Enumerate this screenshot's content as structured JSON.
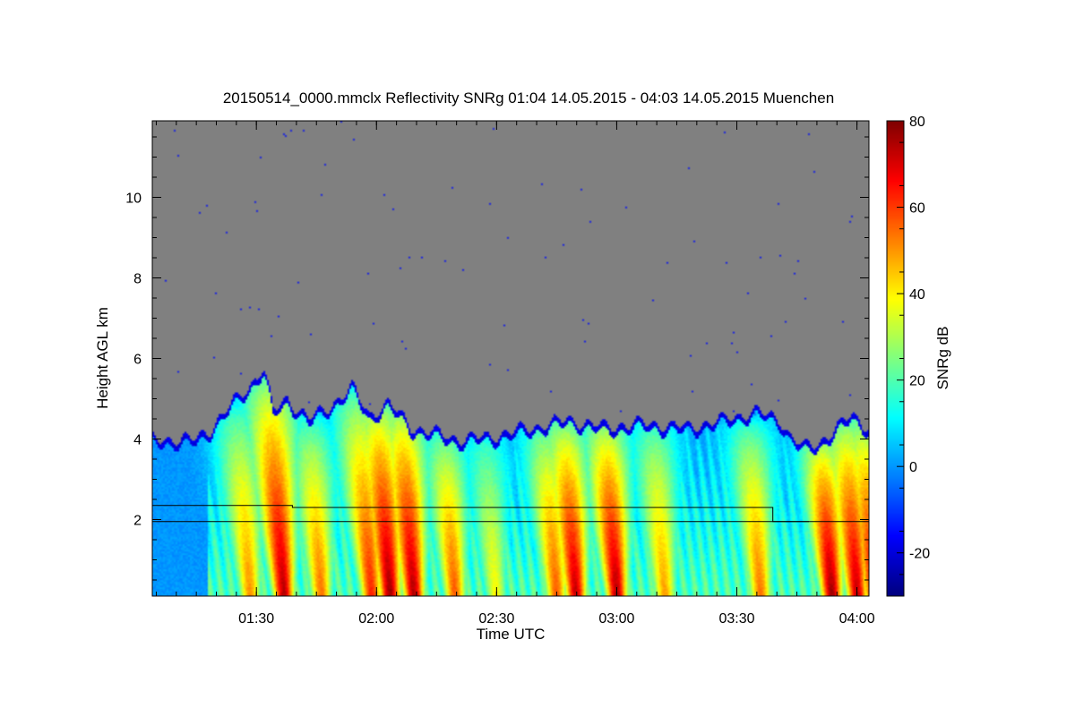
{
  "chart_data": {
    "type": "heatmap",
    "title": "20150514_0000.mmclx Reflectivity SNRg   01:04 14.05.2015 - 04:03 14.05.2015 Muenchen",
    "xlabel": "Time UTC",
    "ylabel": "Height AGL km",
    "x_range_hours": [
      1.0667,
      4.05
    ],
    "y_range_km": [
      0.1,
      11.9
    ],
    "x_ticks": [
      {
        "label": "01:30",
        "value": 1.5
      },
      {
        "label": "02:00",
        "value": 2.0
      },
      {
        "label": "02:30",
        "value": 2.5
      },
      {
        "label": "03:00",
        "value": 3.0
      },
      {
        "label": "03:30",
        "value": 3.5
      },
      {
        "label": "04:00",
        "value": 4.0
      }
    ],
    "y_ticks": [
      {
        "label": "2",
        "value": 2
      },
      {
        "label": "4",
        "value": 4
      },
      {
        "label": "6",
        "value": 6
      },
      {
        "label": "8",
        "value": 8
      },
      {
        "label": "10",
        "value": 10
      }
    ],
    "colorbar": {
      "label": "SNRg dB",
      "range": [
        -30,
        80
      ],
      "ticks": [
        {
          "label": "-20",
          "value": -20
        },
        {
          "label": "0",
          "value": 0
        },
        {
          "label": "20",
          "value": 20
        },
        {
          "label": "40",
          "value": 40
        },
        {
          "label": "60",
          "value": 60
        },
        {
          "label": "80",
          "value": 80
        }
      ]
    },
    "no_signal_color": "#808080",
    "cloud_top_km": [
      [
        1.0667,
        4.0
      ],
      [
        1.25,
        4.0
      ],
      [
        1.3,
        4.2
      ],
      [
        1.4,
        4.9
      ],
      [
        1.47,
        5.3
      ],
      [
        1.53,
        5.8
      ],
      [
        1.57,
        4.7
      ],
      [
        1.63,
        5.0
      ],
      [
        1.72,
        4.5
      ],
      [
        1.8,
        4.8
      ],
      [
        1.9,
        5.3
      ],
      [
        1.97,
        4.6
      ],
      [
        2.05,
        4.9
      ],
      [
        2.15,
        4.3
      ],
      [
        2.35,
        4.0
      ],
      [
        2.5,
        4.1
      ],
      [
        2.65,
        4.3
      ],
      [
        2.8,
        4.5
      ],
      [
        2.95,
        4.3
      ],
      [
        3.1,
        4.4
      ],
      [
        3.3,
        4.3
      ],
      [
        3.45,
        4.5
      ],
      [
        3.58,
        4.7
      ],
      [
        3.68,
        4.5
      ],
      [
        3.72,
        4.1
      ],
      [
        3.78,
        3.8
      ],
      [
        3.84,
        3.9
      ],
      [
        3.9,
        4.2
      ],
      [
        3.98,
        4.6
      ],
      [
        4.05,
        4.3
      ]
    ],
    "streaks": [
      {
        "t": 1.42,
        "top": 4.6,
        "peak": 52
      },
      {
        "t": 1.55,
        "top": 5.4,
        "peak": 75
      },
      {
        "t": 1.72,
        "top": 4.3,
        "peak": 55
      },
      {
        "t": 1.92,
        "top": 5.0,
        "peak": 64
      },
      {
        "t": 2.0,
        "top": 4.8,
        "peak": 78
      },
      {
        "t": 2.1,
        "top": 4.7,
        "peak": 76
      },
      {
        "t": 2.28,
        "top": 4.0,
        "peak": 58
      },
      {
        "t": 2.45,
        "top": 4.0,
        "peak": 40
      },
      {
        "t": 2.7,
        "top": 4.2,
        "peak": 58
      },
      {
        "t": 2.78,
        "top": 4.3,
        "peak": 74
      },
      {
        "t": 2.95,
        "top": 4.3,
        "peak": 76
      },
      {
        "t": 3.15,
        "top": 4.3,
        "peak": 50
      },
      {
        "t": 3.55,
        "top": 4.2,
        "peak": 55
      },
      {
        "t": 3.85,
        "top": 3.9,
        "peak": 78
      },
      {
        "t": 3.95,
        "top": 4.3,
        "peak": 74
      },
      {
        "t": 4.02,
        "top": 4.4,
        "peak": 70
      }
    ],
    "lines": [
      {
        "name": "upper-level-line",
        "points": [
          [
            1.0667,
            2.35
          ],
          [
            1.65,
            2.35
          ],
          [
            1.65,
            2.3
          ],
          [
            3.65,
            2.3
          ],
          [
            3.65,
            1.95
          ],
          [
            4.05,
            1.95
          ]
        ]
      },
      {
        "name": "lower-level-line",
        "points": [
          [
            1.0667,
            1.95
          ],
          [
            3.8,
            1.95
          ]
        ]
      }
    ]
  }
}
